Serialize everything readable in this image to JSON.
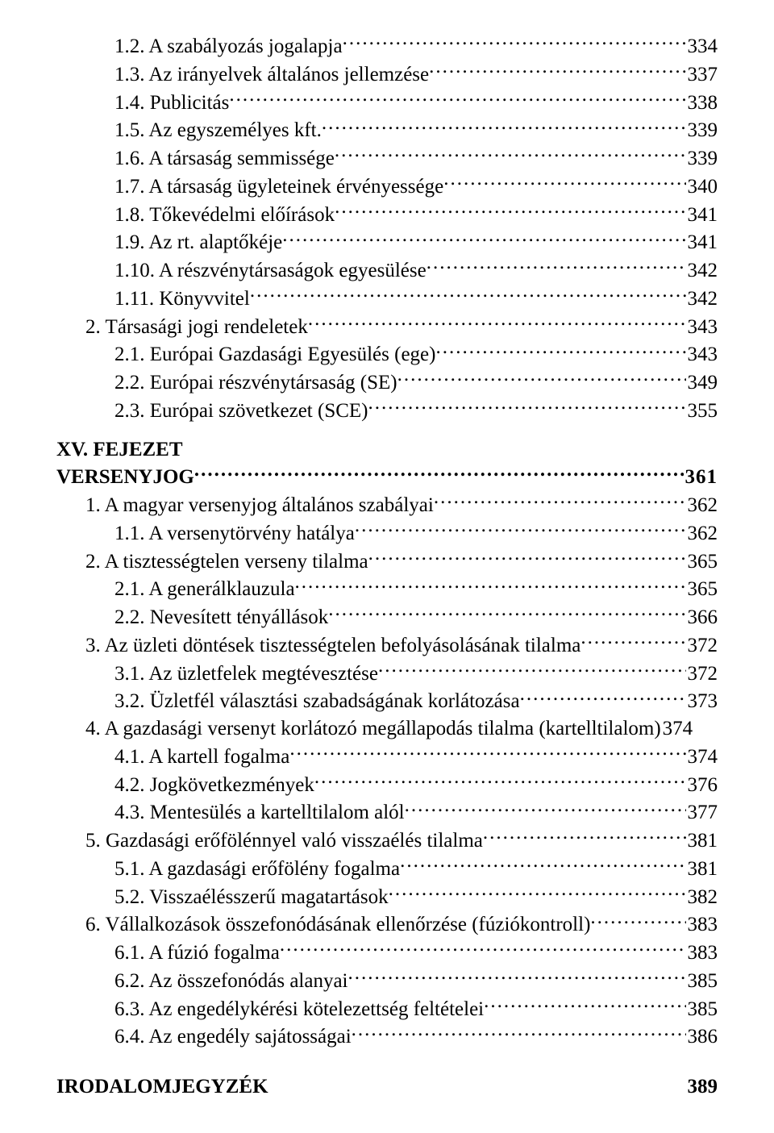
{
  "section1": [
    {
      "indent": 2,
      "label": "1.2. A szabályozás jogalapja",
      "page": "334"
    },
    {
      "indent": 2,
      "label": "1.3. Az irányelvek általános jellemzése",
      "page": "337"
    },
    {
      "indent": 2,
      "label": "1.4. Publicitás",
      "page": "338"
    },
    {
      "indent": 2,
      "label": "1.5. Az egyszemélyes kft.",
      "page": "339"
    },
    {
      "indent": 2,
      "label": "1.6. A társaság semmissége",
      "page": "339"
    },
    {
      "indent": 2,
      "label": "1.7. A társaság ügyleteinek érvényessége",
      "page": "340"
    },
    {
      "indent": 2,
      "label": "1.8. Tőkevédelmi előírások",
      "page": "341"
    },
    {
      "indent": 2,
      "label": "1.9. Az rt. alaptőkéje",
      "page": "341"
    },
    {
      "indent": 2,
      "label": "1.10. A részvénytársaságok egyesülése",
      "page": "342"
    },
    {
      "indent": 2,
      "label": "1.11. Könyvvitel",
      "page": "342"
    },
    {
      "indent": 1,
      "label": "2. Társasági jogi rendeletek",
      "page": "343"
    },
    {
      "indent": 2,
      "label": "2.1. Európai Gazdasági Egyesülés (ege)",
      "page": "343"
    },
    {
      "indent": 2,
      "label": "2.2. Európai részvénytársaság (SE)",
      "page": "349"
    },
    {
      "indent": 2,
      "label": "2.3. Európai szövetkezet (SCE)",
      "page": "355"
    }
  ],
  "chapter": {
    "roman": "XV. FEJEZET",
    "title": "VERSENYJOG",
    "page": "361"
  },
  "section2": [
    {
      "indent": 1,
      "label": "1. A magyar versenyjog általános szabályai",
      "page": "362"
    },
    {
      "indent": 2,
      "label": "1.1. A versenytörvény hatálya",
      "page": "362"
    },
    {
      "indent": 1,
      "label": "2. A tisztességtelen verseny tilalma",
      "page": "365"
    },
    {
      "indent": 2,
      "label": "2.1. A generálklauzula",
      "page": "365"
    },
    {
      "indent": 2,
      "label": "2.2. Nevesített tényállások",
      "page": "366"
    },
    {
      "indent": 1,
      "label": "3. Az üzleti döntések tisztességtelen befolyásolásának tilalma",
      "page": "372"
    },
    {
      "indent": 2,
      "label": "3.1. Az üzletfelek megtévesztése",
      "page": "372"
    },
    {
      "indent": 2,
      "label": "3.2. Üzletfél választási szabadságának korlátozása",
      "page": "373"
    },
    {
      "indent": 1,
      "label": "4. A gazdasági versenyt korlátozó megállapodás tilalma (kartelltilalom)",
      "page": "374",
      "nodots": true
    },
    {
      "indent": 2,
      "label": "4.1. A kartell fogalma",
      "page": "374"
    },
    {
      "indent": 2,
      "label": "4.2. Jogkövetkezmények",
      "page": "376"
    },
    {
      "indent": 2,
      "label": "4.3. Mentesülés a kartelltilalom alól",
      "page": "377"
    },
    {
      "indent": 1,
      "label": "5. Gazdasági erőfölénnyel való visszaélés tilalma",
      "page": "381"
    },
    {
      "indent": 2,
      "label": "5.1. A gazdasági erőfölény fogalma",
      "page": "381"
    },
    {
      "indent": 2,
      "label": "5.2. Visszaélésszerű magatartások",
      "page": "382"
    },
    {
      "indent": 1,
      "label": "6. Vállalkozások összefonódásának ellenőrzése (fúziókontroll)",
      "page": "383"
    },
    {
      "indent": 2,
      "label": "6.1. A fúzió fogalma",
      "page": "383"
    },
    {
      "indent": 2,
      "label": "6.2. Az összefonódás alanyai",
      "page": "385"
    },
    {
      "indent": 2,
      "label": "6.3. Az engedélykérési kötelezettség feltételei",
      "page": "385"
    },
    {
      "indent": 2,
      "label": "6.4. Az engedély sajátosságai",
      "page": "386"
    }
  ],
  "bibliography": {
    "title": "IRODALOMJEGYZÉK",
    "page": "389"
  }
}
